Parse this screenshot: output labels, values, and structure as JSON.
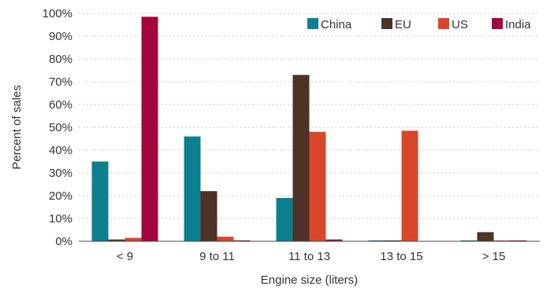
{
  "chart_data": {
    "type": "bar",
    "title": "",
    "xlabel": "Engine size (liters)",
    "ylabel": "Percent of sales",
    "categories": [
      "< 9",
      "9 to 11",
      "11 to 13",
      "13 to 15",
      "> 15"
    ],
    "series": [
      {
        "name": "China",
        "color": "#0e7f8f",
        "values": [
          35,
          46,
          19,
          0.4,
          0.4
        ]
      },
      {
        "name": "EU",
        "color": "#4e3227",
        "values": [
          0.8,
          22,
          73,
          0.4,
          4
        ]
      },
      {
        "name": "US",
        "color": "#d9472b",
        "values": [
          1.5,
          2,
          48,
          48.5,
          0.4
        ]
      },
      {
        "name": "India",
        "color": "#a3063e",
        "values": [
          98.5,
          0.4,
          0.8,
          0,
          0.4
        ]
      }
    ],
    "ylim": [
      0,
      100
    ],
    "yticks": [
      "0%",
      "10%",
      "20%",
      "30%",
      "40%",
      "50%",
      "60%",
      "70%",
      "80%",
      "90%",
      "100%"
    ],
    "grid": true,
    "legend_position": "top-right"
  }
}
